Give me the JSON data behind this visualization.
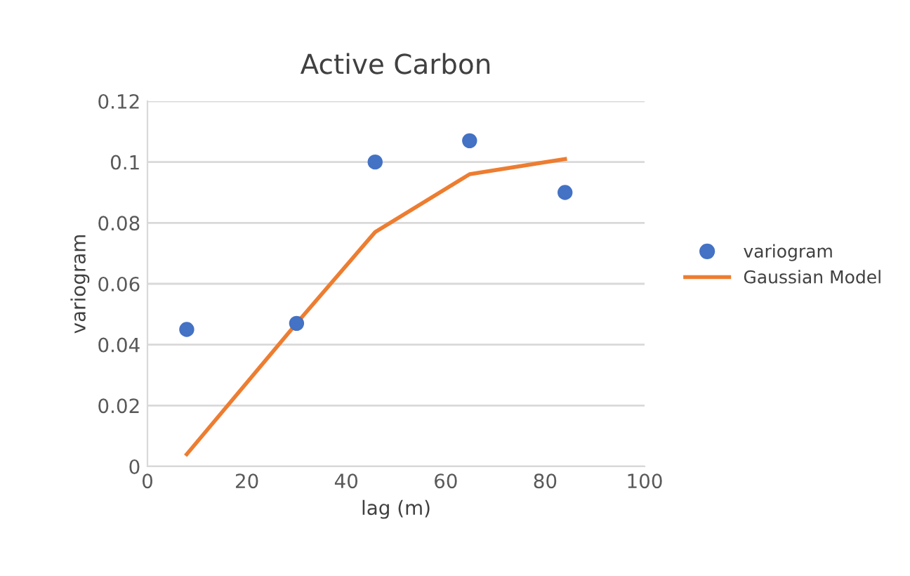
{
  "chart_data": {
    "type": "scatter",
    "title": "Active Carbon",
    "xlabel": "lag (m)",
    "ylabel": "variogram",
    "xlim": [
      0,
      100
    ],
    "xticks": [
      0,
      20,
      40,
      60,
      80,
      100
    ],
    "ylim": [
      0,
      0.12
    ],
    "yticks": [
      0,
      0.02,
      0.04,
      0.06,
      0.08,
      0.1,
      0.12
    ],
    "grid": "y",
    "legend": "right",
    "series": [
      {
        "name": "variogram",
        "marker": "circle",
        "color": "#4472c4",
        "x": [
          7.9,
          30,
          45.8,
          64.8,
          84
        ],
        "values": [
          0.045,
          0.047,
          0.1,
          0.107,
          0.09
        ]
      },
      {
        "name": "Gaussian Model",
        "type": "line",
        "color": "#ed7d31",
        "x": [
          7.9,
          30,
          45.8,
          64.8,
          84
        ],
        "values": [
          0.004,
          0.047,
          0.077,
          0.096,
          0.101
        ]
      }
    ]
  }
}
